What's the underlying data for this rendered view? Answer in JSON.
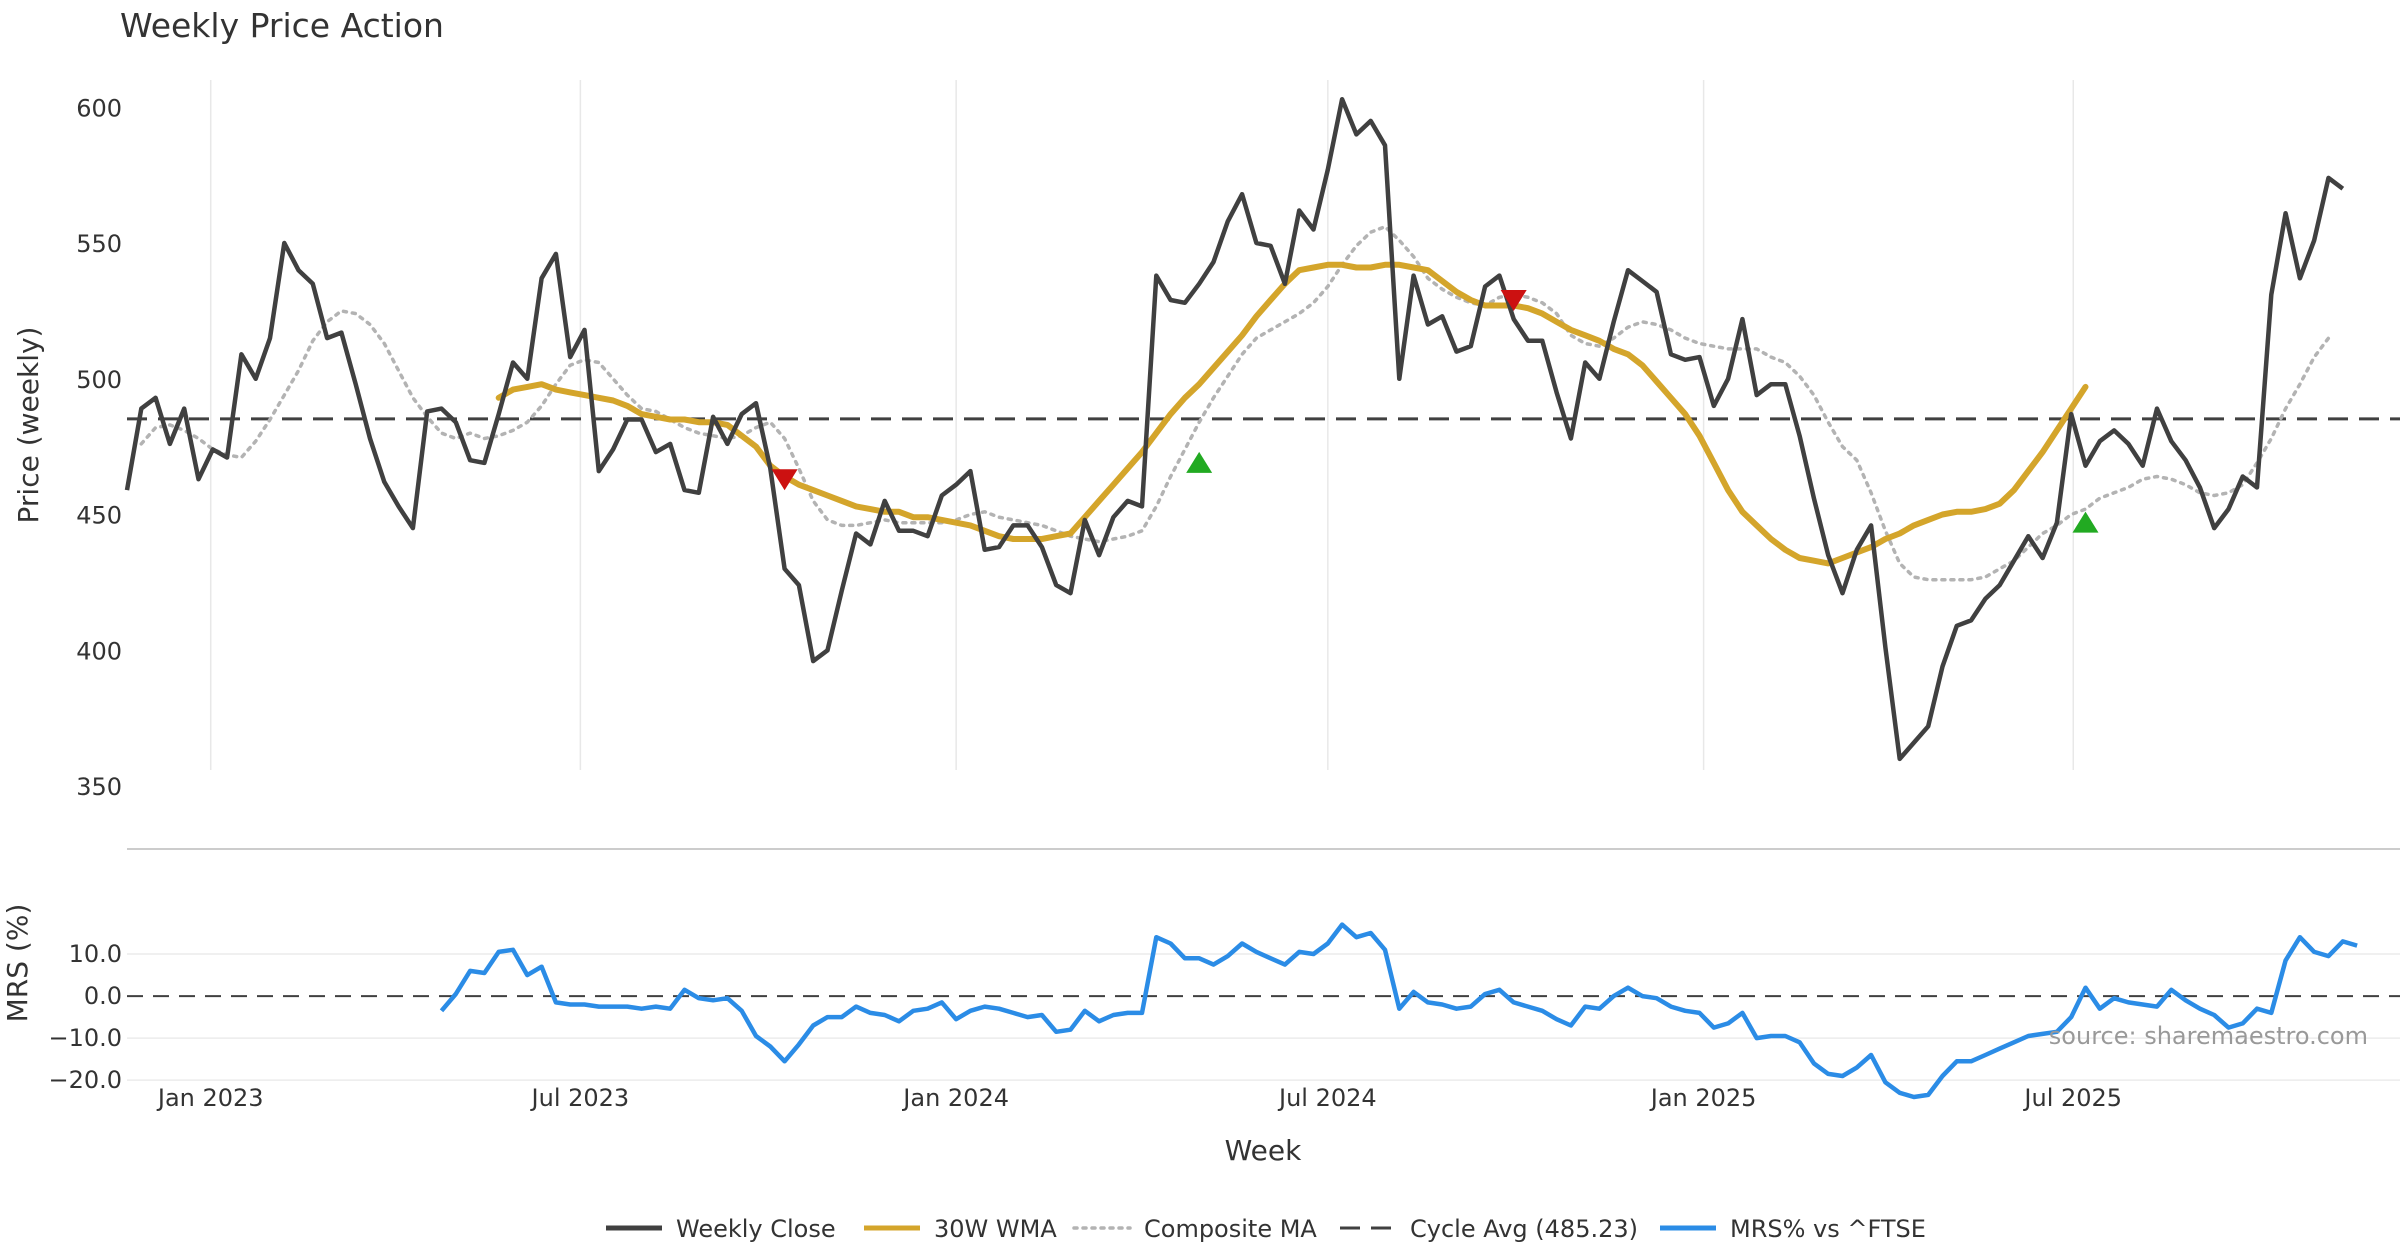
{
  "chart_data": {
    "type": "line",
    "title": "Weekly Price Action",
    "xlabel": "Week",
    "x_ticks": [
      "Jan 2023",
      "Jul 2023",
      "Jan 2024",
      "Jul 2024",
      "Jan 2025",
      "Jul 2025"
    ],
    "x_range": [
      "2022-11-21",
      "2025-12-08"
    ],
    "price_panel": {
      "ylabel": "Price (weekly)",
      "ylim": [
        350,
        620
      ],
      "yticks": [
        350,
        400,
        450,
        500,
        550,
        600
      ],
      "grid": "vertical",
      "cycle_avg": 485.23,
      "series": [
        {
          "name": "Weekly Close",
          "color": "#404040",
          "start": "2022-11-21",
          "values": [
            459,
            489,
            493,
            476,
            489,
            463,
            474,
            471,
            509,
            500,
            515,
            550,
            540,
            535,
            515,
            517,
            498,
            478,
            462,
            453,
            445,
            488,
            489,
            484,
            470,
            469,
            487,
            506,
            500,
            537,
            546,
            508,
            518,
            466,
            474,
            485,
            485,
            473,
            476,
            459,
            458,
            486,
            476,
            487,
            491,
            467,
            430,
            424,
            396,
            400,
            422,
            443,
            439,
            455,
            444,
            444,
            442,
            457,
            461,
            466,
            437,
            438,
            446,
            446,
            438,
            424,
            421,
            448,
            435,
            449,
            455,
            453,
            538,
            529,
            528,
            535,
            543,
            558,
            568,
            550,
            549,
            535,
            562,
            555,
            577,
            603,
            590,
            595,
            586,
            500,
            538,
            520,
            523,
            510,
            512,
            534,
            538,
            522,
            514,
            514,
            495,
            478,
            506,
            500,
            521,
            540,
            536,
            532,
            509,
            507,
            508,
            490,
            500,
            522,
            494,
            498,
            498,
            479,
            456,
            435,
            421,
            437,
            446,
            401,
            360,
            366,
            372,
            394,
            409,
            411,
            419,
            424,
            433,
            442,
            434,
            447,
            487,
            468,
            477,
            481,
            476,
            468,
            489,
            477,
            470,
            460,
            445,
            452,
            464,
            460,
            531,
            561,
            537,
            551,
            574,
            570
          ]
        },
        {
          "name": "30W WMA",
          "color": "#d4a52b",
          "start": "2023-05-22",
          "values": [
            493,
            496,
            497,
            498,
            496,
            495,
            494,
            493,
            492,
            490,
            487,
            486,
            485,
            485,
            484,
            484,
            483,
            479,
            475,
            468,
            464,
            461,
            459,
            457,
            455,
            453,
            452,
            451,
            451,
            449,
            449,
            448,
            447,
            446,
            444,
            442,
            441,
            441,
            441,
            442,
            443,
            449,
            455,
            461,
            467,
            473,
            480,
            487,
            493,
            498,
            504,
            510,
            516,
            523,
            529,
            535,
            540,
            541,
            542,
            542,
            541,
            541,
            542,
            542,
            541,
            540,
            536,
            532,
            529,
            527,
            527,
            527,
            526,
            524,
            521,
            518,
            516,
            514,
            511,
            509,
            505,
            499,
            493,
            487,
            479,
            469,
            459,
            451,
            446,
            441,
            437,
            434,
            433,
            432,
            434,
            436,
            438,
            441,
            443,
            446,
            448,
            450,
            451,
            451,
            452,
            454,
            459,
            466,
            473,
            481,
            489,
            497
          ]
        },
        {
          "name": "Composite MA",
          "color": "#b3b3b3",
          "start": "2022-11-28",
          "values": [
            476,
            482,
            483,
            481,
            478,
            474,
            472,
            471,
            477,
            485,
            494,
            503,
            514,
            521,
            525,
            524,
            520,
            513,
            503,
            493,
            486,
            480,
            478,
            480,
            478,
            479,
            481,
            484,
            490,
            498,
            505,
            507,
            506,
            500,
            494,
            489,
            488,
            485,
            482,
            480,
            479,
            478,
            479,
            482,
            484,
            478,
            467,
            455,
            448,
            446,
            446,
            447,
            448,
            447,
            447,
            447,
            447,
            448,
            450,
            451,
            449,
            448,
            447,
            446,
            444,
            442,
            441,
            440,
            441,
            442,
            444,
            453,
            464,
            474,
            484,
            493,
            501,
            509,
            515,
            518,
            521,
            524,
            528,
            534,
            542,
            549,
            554,
            556,
            551,
            545,
            537,
            533,
            530,
            528,
            527,
            530,
            531,
            530,
            528,
            524,
            516,
            513,
            512,
            515,
            519,
            521,
            520,
            518,
            515,
            513,
            512,
            511,
            511,
            511,
            508,
            506,
            501,
            494,
            484,
            475,
            470,
            458,
            444,
            432,
            427,
            426,
            426,
            426,
            426,
            427,
            430,
            433,
            438,
            443,
            446,
            450,
            452,
            456,
            458,
            460,
            463,
            464,
            463,
            461,
            458,
            457,
            458,
            461,
            469,
            478,
            489,
            498,
            508,
            515
          ]
        }
      ],
      "markers": [
        {
          "type": "sell",
          "date": "2023-10-09",
          "value": 463,
          "color": "#cc1111"
        },
        {
          "type": "buy",
          "date": "2024-04-29",
          "value": 469,
          "color": "#22aa22"
        },
        {
          "type": "sell",
          "date": "2024-09-30",
          "value": 529,
          "color": "#cc1111"
        },
        {
          "type": "buy",
          "date": "2025-07-07",
          "value": 447,
          "color": "#22aa22"
        }
      ]
    },
    "mrs_panel": {
      "ylabel": "MRS (%)",
      "ylim": [
        -24,
        20
      ],
      "yticks": [
        -20.0,
        -10.0,
        0.0,
        10.0
      ],
      "ytick_labels": [
        "−20.0",
        "−10.0",
        "0.0",
        "10.0"
      ],
      "series": [
        {
          "name": "MRS% vs ^FTSE",
          "color": "#2b8ce6",
          "start": "2023-04-24",
          "values": [
            -3.5,
            0.5,
            6,
            5.5,
            10.5,
            11,
            5,
            7,
            -1.5,
            -2,
            -2,
            -2.5,
            -2.5,
            -2.5,
            -3,
            -2.5,
            -3,
            1.5,
            -0.5,
            -1,
            -0.5,
            -3.5,
            -9.5,
            -12,
            -15.5,
            -11.5,
            -7,
            -5,
            -5,
            -2.5,
            -4,
            -4.5,
            -6,
            -3.5,
            -3,
            -1.5,
            -5.5,
            -3.5,
            -2.5,
            -3,
            -4,
            -5,
            -4.5,
            -8.5,
            -8,
            -3.5,
            -6,
            -4.5,
            -4,
            -4,
            14,
            12.5,
            9,
            9,
            7.5,
            9.5,
            12.5,
            10.5,
            9,
            7.5,
            10.5,
            10,
            12.5,
            17,
            14,
            15,
            11,
            -3,
            1,
            -1.5,
            -2,
            -3,
            -2.5,
            0.5,
            1.5,
            -1.5,
            -2.5,
            -3.5,
            -5.5,
            -7,
            -2.5,
            -3,
            0,
            2,
            0,
            -0.5,
            -2.5,
            -3.5,
            -4,
            -7.5,
            -6.5,
            -4,
            -10,
            -9.5,
            -9.5,
            -11,
            -16,
            -18.5,
            -19,
            -17,
            -14,
            -20.5,
            -23,
            -24,
            -23.5,
            -19,
            -15.5,
            -15.5,
            -14,
            -12.5,
            -11,
            -9.5,
            -9,
            -8.5,
            -5,
            2,
            -3,
            -0.5,
            -1.5,
            -2,
            -2.5,
            1.5,
            -1,
            -3,
            -4.5,
            -7.5,
            -6.5,
            -3,
            -4,
            8.5,
            14,
            10.5,
            9.5,
            13,
            12
          ]
        }
      ]
    },
    "legend": {
      "placement": "bottom-center",
      "entries": [
        {
          "label": "Weekly Close",
          "color": "#404040",
          "style": "solid"
        },
        {
          "label": "30W WMA",
          "color": "#d4a52b",
          "style": "solid"
        },
        {
          "label": "Composite MA",
          "color": "#b3b3b3",
          "style": "dotted"
        },
        {
          "label": "Cycle Avg (485.23)",
          "color": "#404040",
          "style": "dashed"
        },
        {
          "label": "MRS% vs ^FTSE",
          "color": "#2b8ce6",
          "style": "solid"
        }
      ]
    },
    "annotation": "source: sharemaestro.com"
  }
}
